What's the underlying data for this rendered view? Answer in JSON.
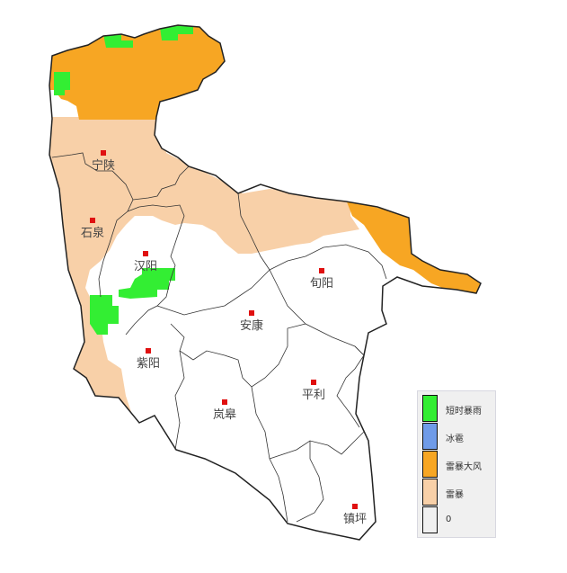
{
  "colors": {
    "short_heavy_rain": "#33ee33",
    "hail": "#6f9be8",
    "thunderstorm_gale": "#f7a623",
    "thunderstorm": "#f8d0a8",
    "none": "#f0f0f0",
    "city_marker": "#e01010",
    "boundary": "#222222"
  },
  "cities": [
    {
      "name": "宁陕"
    },
    {
      "name": "石泉"
    },
    {
      "name": "汉阳"
    },
    {
      "name": "旬阳"
    },
    {
      "name": "安康"
    },
    {
      "name": "紫阳"
    },
    {
      "name": "平利"
    },
    {
      "name": "岚皋"
    },
    {
      "name": "镇坪"
    }
  ],
  "legend": {
    "items": [
      {
        "label": "短时暴雨",
        "color": "#33ee33"
      },
      {
        "label": "冰雹",
        "color": "#6f9be8"
      },
      {
        "label": "雷暴大风",
        "color": "#f7a623"
      },
      {
        "label": "雷暴",
        "color": "#f8d0a8"
      },
      {
        "label": "0",
        "color": "#f0f0f0"
      }
    ]
  }
}
